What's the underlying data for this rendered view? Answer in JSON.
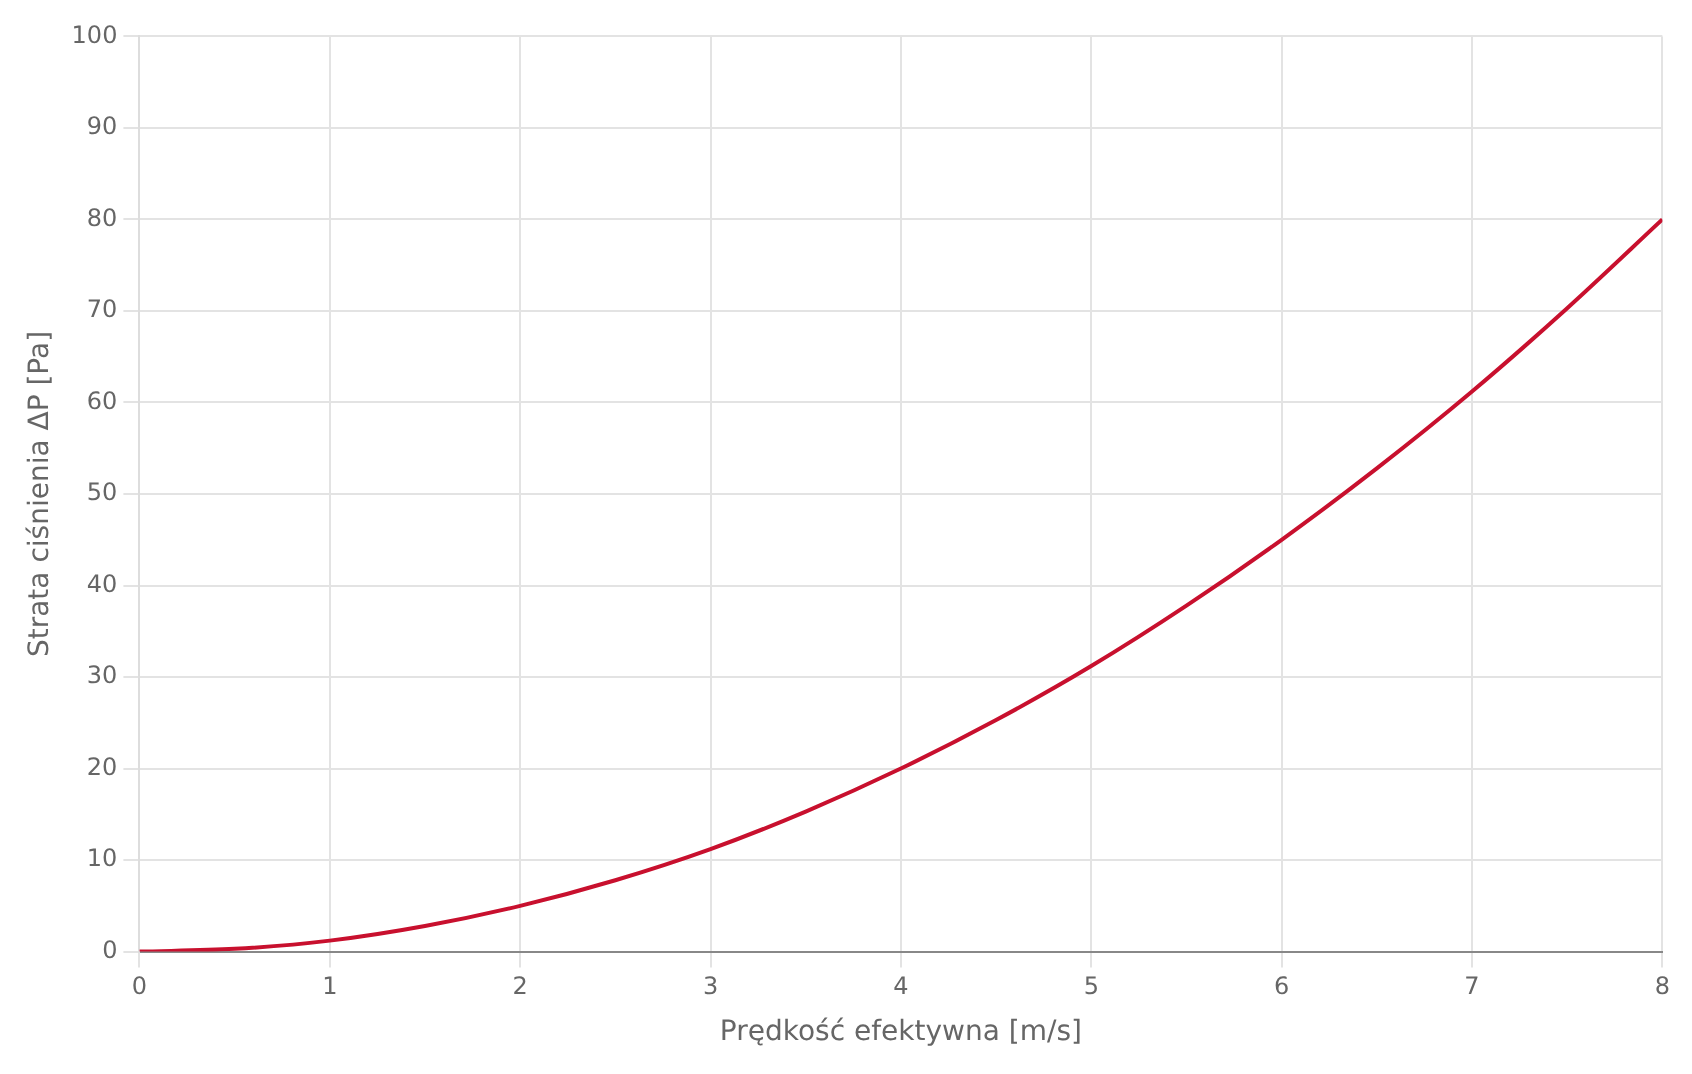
{
  "chart_data": {
    "type": "line",
    "xlabel": "Prędkość efektywna [m/s]",
    "ylabel": "Strata ciśnienia ΔP [Pa]",
    "x": [
      0,
      0.5,
      1,
      1.5,
      2,
      2.5,
      3,
      3.5,
      4,
      4.5,
      5,
      5.5,
      6,
      6.5,
      7,
      7.5,
      8
    ],
    "series": [
      {
        "color": "#c8102e",
        "values": [
          0,
          0.3,
          1.2,
          2.8,
          5,
          7.8,
          11.2,
          15.3,
          20,
          25.3,
          31.2,
          37.8,
          45,
          52.8,
          61.2,
          70.3,
          80
        ]
      }
    ],
    "xlim": [
      0,
      8
    ],
    "xticks": [
      0,
      1,
      2,
      3,
      4,
      5,
      6,
      7,
      8
    ],
    "ylim": [
      0,
      100
    ],
    "yticks": [
      0,
      10,
      20,
      30,
      40,
      50,
      60,
      70,
      80,
      90,
      100
    ],
    "grid": true,
    "marker": "none",
    "line_style": "solid",
    "legend": false
  }
}
